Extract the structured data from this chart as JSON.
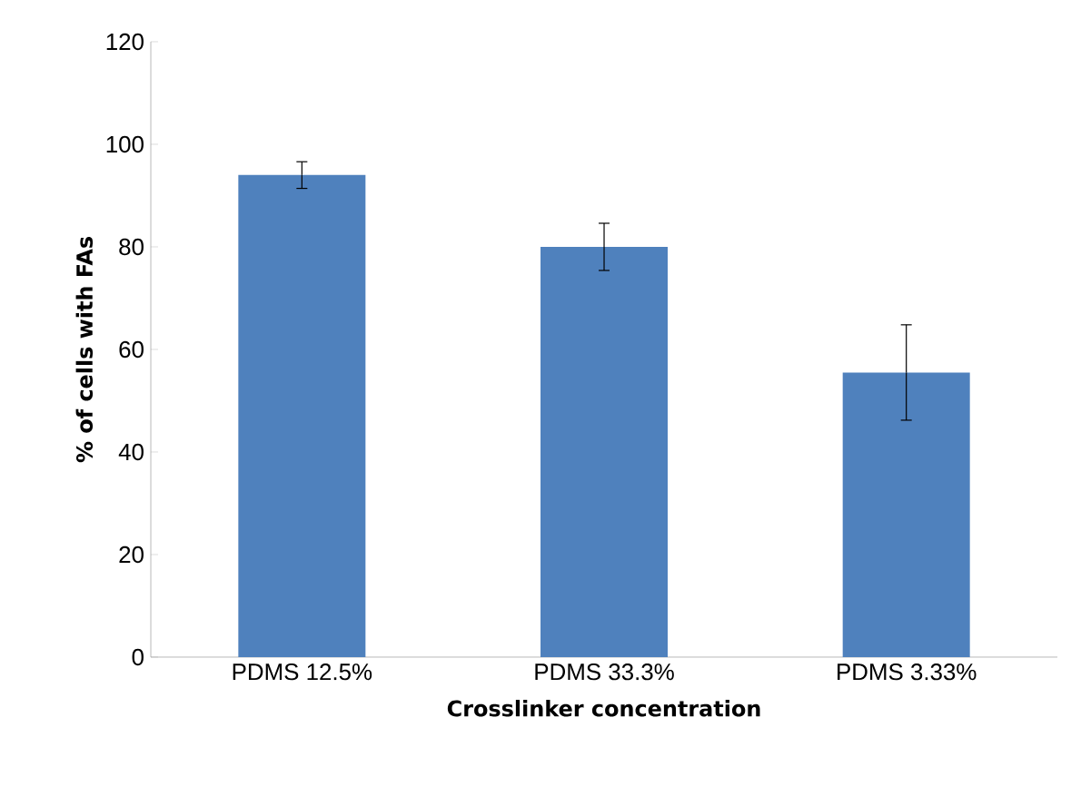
{
  "chart_data": {
    "type": "bar",
    "xlabel": "Crosslinker concentration",
    "ylabel": "% of cells with FAs",
    "categories": [
      "PDMS 12.5%",
      "PDMS 33.3%",
      "PDMS 3.33%"
    ],
    "values": [
      94,
      80,
      55.5
    ],
    "errors": [
      2.6,
      4.6,
      9.3
    ],
    "color": "#4f81bd",
    "ylim": [
      0,
      120
    ],
    "yticks": [
      0,
      20,
      40,
      60,
      80,
      100,
      120
    ],
    "grid": false
  }
}
